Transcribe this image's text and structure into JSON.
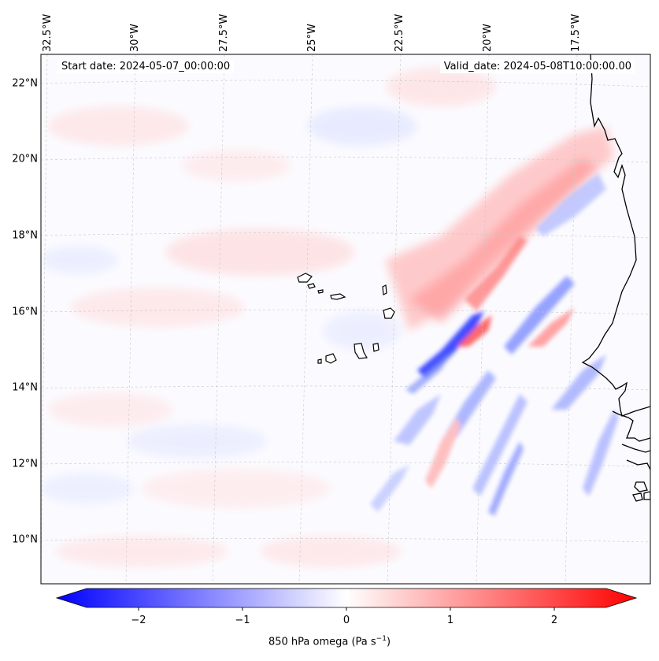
{
  "map": {
    "title_start": "Start date: 2024-05-07_00:00:00",
    "title_valid": "Valid_date: 2024-05-08T10:00:00.00",
    "variable": "850 hPa omega (Pa s",
    "variable_exp": "−1",
    "variable_end": ")",
    "colormap": [
      "#0000ff",
      "#ffffff",
      "#ff0000"
    ],
    "lon_labels": [
      "32.5°W",
      "30°W",
      "27.5°W",
      "25°W",
      "22.5°W",
      "20°W",
      "17.5°W"
    ],
    "lat_labels": [
      "22°N",
      "20°N",
      "18°N",
      "16°N",
      "14°N",
      "12°N",
      "10°N"
    ],
    "colorbar": {
      "min": -2.5,
      "max": 2.5,
      "ticks": [
        "−2",
        "−1",
        "0",
        "1",
        "2"
      ],
      "tick_values": [
        -2,
        -1,
        0,
        1,
        2
      ]
    }
  }
}
